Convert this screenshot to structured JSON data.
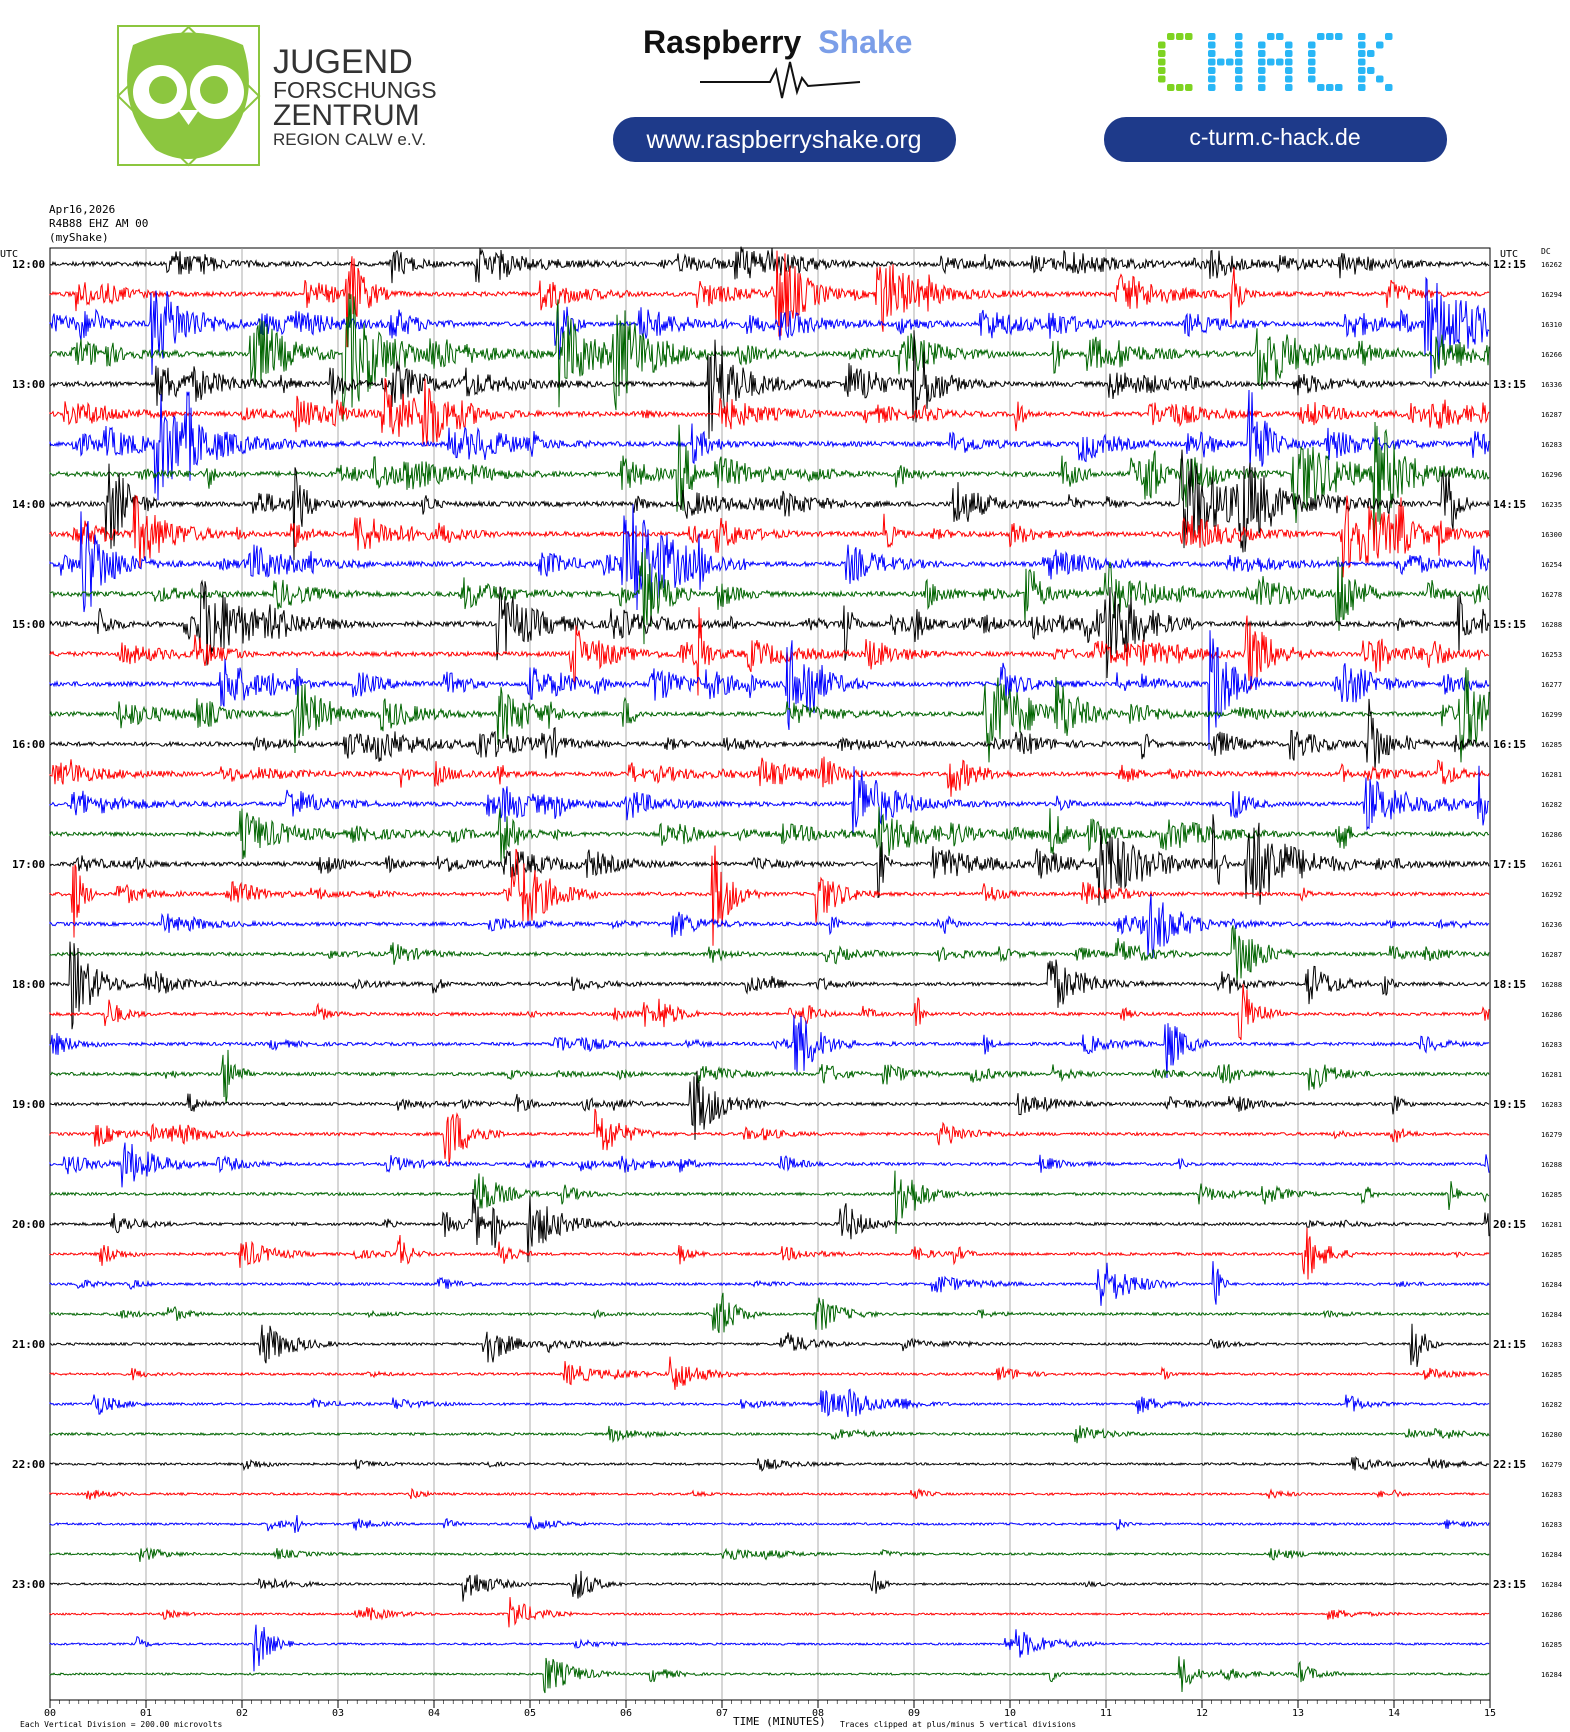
{
  "header": {
    "jfz_lines": [
      "JUGEND",
      "FORSCHUNGS",
      "ZENTRUM",
      "REGION CALW e.V."
    ],
    "rs_title_part1": "Raspberry",
    "rs_title_part2": "Shake",
    "rs_url": "www.raspberryshake.org",
    "chack_logo_text": "CHACK",
    "chack_url": "c-turm.c-hack.de"
  },
  "station": {
    "date": "Apr16,2026",
    "channel": "R4B88 EHZ AM 00",
    "source": "(myShake)"
  },
  "colors": {
    "trace_cycle": [
      "#000000",
      "#ff0000",
      "#0000ff",
      "#006400"
    ],
    "grid": "#9a9a9a",
    "jfz_green": "#8cc63f",
    "rs_blue_light": "#7b9ee8",
    "url_pill": "#1e3a8a",
    "chack_green": "#7ed321",
    "chack_cyan": "#29b6f6"
  },
  "chart_data": {
    "type": "line",
    "title": "",
    "xlabel": "TIME (MINUTES)",
    "xlim": [
      0,
      15
    ],
    "x_ticks": [
      "00",
      "01",
      "02",
      "03",
      "04",
      "05",
      "06",
      "07",
      "08",
      "09",
      "10",
      "11",
      "12",
      "13",
      "14",
      "15"
    ],
    "left_axis_title": "UTC",
    "right_axis_title": "UTC",
    "dc_title": "DC",
    "left_labels": [
      "12:00",
      "13:00",
      "14:00",
      "15:00",
      "16:00",
      "17:00",
      "18:00",
      "19:00",
      "20:00",
      "21:00",
      "22:00",
      "23:00"
    ],
    "right_labels": [
      "12:15",
      "13:15",
      "14:15",
      "15:15",
      "16:15",
      "17:15",
      "18:15",
      "19:15",
      "20:15",
      "21:15",
      "22:15",
      "23:15"
    ],
    "dc_values": [
      "16262",
      "16294",
      "16310",
      "16266",
      "16336",
      "16287",
      "16283",
      "16296",
      "16235",
      "16300",
      "16254",
      "16278",
      "16288",
      "16253",
      "16277",
      "16299",
      "16285",
      "16281",
      "16282",
      "16286",
      "16261",
      "16292",
      "16236",
      "16287",
      "16288",
      "16286",
      "16283",
      "16281",
      "16283",
      "16279",
      "16288",
      "16285",
      "16281",
      "16285",
      "16284",
      "16284",
      "16283",
      "16285",
      "16282",
      "16280",
      "16279",
      "16283",
      "16283",
      "16284",
      "16284",
      "16286",
      "16285",
      "16284"
    ],
    "trace_activity": [
      0.9,
      0.9,
      0.9,
      1.0,
      1.0,
      1.0,
      1.0,
      1.0,
      1.0,
      1.0,
      1.0,
      1.0,
      1.0,
      0.9,
      0.9,
      0.8,
      0.8,
      0.8,
      0.8,
      0.8,
      0.8,
      0.6,
      0.6,
      0.55,
      0.55,
      0.5,
      0.5,
      0.5,
      0.45,
      0.45,
      0.4,
      0.4,
      0.4,
      0.35,
      0.3,
      0.3,
      0.25,
      0.25,
      0.25,
      0.25,
      0.2,
      0.2,
      0.2,
      0.2,
      0.15,
      0.15,
      0.15,
      0.15
    ],
    "footer_left": "Each Vertical Division =  200.00 microvolts",
    "footer_right": "Traces clipped at plus/minus 5 vertical divisions"
  }
}
